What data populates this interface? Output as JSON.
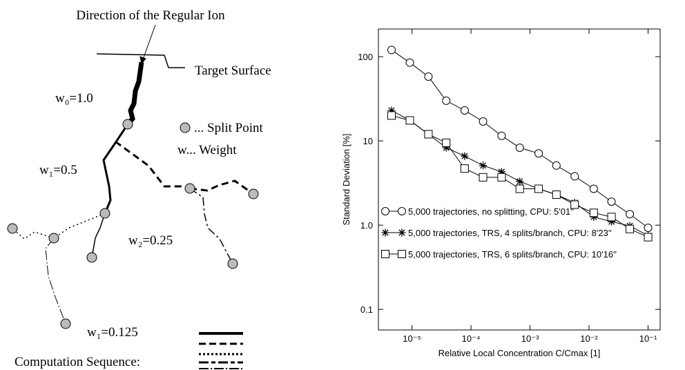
{
  "diagram": {
    "title": "Direction of the Regular Ion",
    "surface_label": "Target Surface",
    "legend_split": "... Split Point",
    "legend_weight": "w... Weight",
    "weights": [
      "w₀=1.0",
      "w₁=0.5",
      "w₂=0.25",
      "w₁=0.125"
    ],
    "sequence_label": "Computation Sequence:"
  },
  "chart_data": {
    "type": "line",
    "ylabel": "Standard Deviation [%]",
    "xlabel": "Relative Local Concentration C/Cmax [1]",
    "xscale": "log",
    "yscale": "log",
    "xlim": [
      2.7e-06,
      0.16
    ],
    "ylim": [
      0.057,
      213
    ],
    "xticks": [
      {
        "value": 1e-05,
        "label": "10⁻⁵"
      },
      {
        "value": 0.0001,
        "label": "10⁻⁴"
      },
      {
        "value": 0.001,
        "label": "10⁻³"
      },
      {
        "value": 0.01,
        "label": "10⁻²"
      },
      {
        "value": 0.1,
        "label": "10⁻¹"
      }
    ],
    "yticks": [
      0.1,
      {
        "value": 1,
        "label": "1.0"
      },
      10,
      100
    ],
    "legend": "lower left",
    "x": [
      4.5e-06,
      9.2e-06,
      1.9e-05,
      3.8e-05,
      7.8e-05,
      0.00016,
      0.00033,
      0.00067,
      0.0014,
      0.0028,
      0.0057,
      0.012,
      0.024,
      0.049,
      0.1
    ],
    "series": [
      {
        "name": "5,000 trajectories, no splitting, CPU: 5'01''",
        "color": "#000000",
        "marker": "circle",
        "values": [
          120,
          85,
          58,
          30,
          23,
          17,
          11.5,
          8.3,
          7.1,
          5.1,
          3.8,
          2.7,
          1.9,
          1.35,
          0.93
        ]
      },
      {
        "name": "5,000 trajectories, TRS, 4 splits/branch, CPU: 8'23''",
        "color": "#000000",
        "marker": "star",
        "values": [
          23,
          17.5,
          12,
          8.3,
          6.6,
          5.1,
          4.3,
          3.3,
          2.7,
          2.3,
          1.85,
          1.25,
          1.1,
          0.98,
          0.75
        ]
      },
      {
        "name": "5,000 trajectories, TRS, 6 splits/branch, CPU: 10'16''",
        "color": "#000000",
        "marker": "square",
        "values": [
          20,
          17.5,
          12,
          9.5,
          4.7,
          3.7,
          3.7,
          2.7,
          2.7,
          2.3,
          1.75,
          1.4,
          1.25,
          0.9,
          0.72
        ]
      }
    ]
  }
}
